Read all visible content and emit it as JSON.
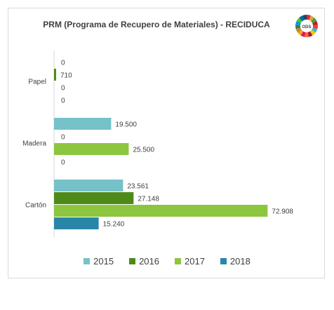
{
  "chart_data": {
    "type": "bar",
    "orientation": "horizontal",
    "title": "PRM (Programa de Recupero de Materiales) - RECIDUCA",
    "categories": [
      "Papel",
      "Madera",
      "Cartón"
    ],
    "series": [
      {
        "name": "2015",
        "color": "#75c2c8",
        "values": [
          0,
          19500,
          23561
        ],
        "labels": [
          "0",
          "19.500",
          "23.561"
        ]
      },
      {
        "name": "2016",
        "color": "#4e8a1a",
        "values": [
          710,
          0,
          27148
        ],
        "labels": [
          "710",
          "0",
          "27.148"
        ]
      },
      {
        "name": "2017",
        "color": "#8cc63f",
        "values": [
          0,
          25500,
          72908
        ],
        "labels": [
          "0",
          "25.500",
          "72.908"
        ]
      },
      {
        "name": "2018",
        "color": "#2a86a8",
        "values": [
          0,
          0,
          15240
        ],
        "labels": [
          "0",
          "0",
          "15.240"
        ]
      }
    ],
    "xlim": [
      0,
      80000
    ],
    "grid": false,
    "legend": "bottom"
  },
  "logo": {
    "text": "ODS",
    "colors": [
      "#e5243b",
      "#dda63a",
      "#4c9f38",
      "#c5192d",
      "#ff3a21",
      "#26bde2",
      "#fcc30b",
      "#a21942",
      "#fd6925",
      "#dd1367",
      "#fd9d24",
      "#bf8b2e",
      "#3f7e44",
      "#0a97d9",
      "#56c02b",
      "#00689d",
      "#19486a"
    ]
  }
}
